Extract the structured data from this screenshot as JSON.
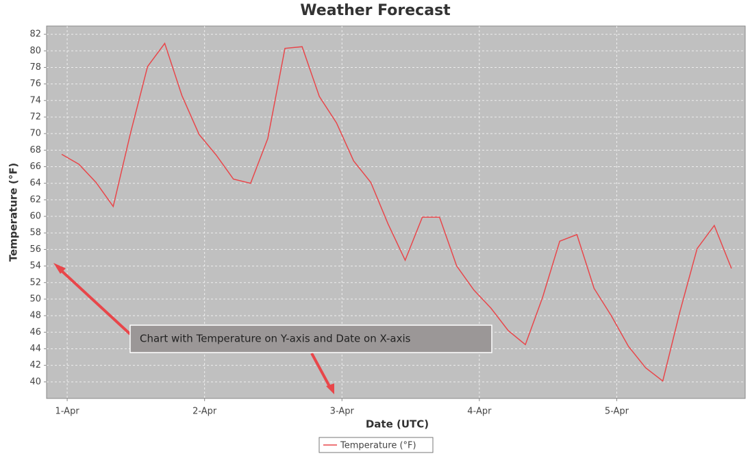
{
  "chart_data": {
    "type": "line",
    "title": "Weather Forecast",
    "x_label": "Date (UTC)",
    "y_label": "Temperature (°F)",
    "annotation": "Chart with Temperature on Y-axis and Date on X-axis",
    "x": [
      0.96,
      1.085,
      1.21,
      1.335,
      1.46,
      1.585,
      1.71,
      1.835,
      1.96,
      2.085,
      2.21,
      2.335,
      2.46,
      2.585,
      2.71,
      2.835,
      2.96,
      3.085,
      3.21,
      3.335,
      3.46,
      3.585,
      3.71,
      3.835,
      3.96,
      4.085,
      4.21,
      4.335,
      4.46,
      4.585,
      4.71,
      4.835,
      4.96,
      5.085,
      5.21,
      5.335,
      5.46,
      5.585,
      5.71,
      5.835
    ],
    "series": [
      {
        "name": "Temperature (°F)",
        "color": "#e8464a",
        "values": [
          67.5,
          66.3,
          64.1,
          61.2,
          70.0,
          78.1,
          80.9,
          74.6,
          69.9,
          67.4,
          64.5,
          64.0,
          69.4,
          80.3,
          80.5,
          74.5,
          71.3,
          66.7,
          64.1,
          59.1,
          54.7,
          59.9,
          59.9,
          54.0,
          51.1,
          48.9,
          46.2,
          44.5,
          50.2,
          57.0,
          57.8,
          51.3,
          48.0,
          44.3,
          41.7,
          40.1,
          48.5,
          56.1,
          58.9,
          53.7
        ]
      }
    ],
    "xlim": [
      0.85,
      5.935
    ],
    "xticks": [
      {
        "value": 1,
        "label": "1-Apr"
      },
      {
        "value": 2,
        "label": "2-Apr"
      },
      {
        "value": 3,
        "label": "3-Apr"
      },
      {
        "value": 4,
        "label": "4-Apr"
      },
      {
        "value": 5,
        "label": "5-Apr"
      }
    ],
    "ylim": [
      38,
      83
    ],
    "yticks": [
      40,
      42,
      44,
      46,
      48,
      50,
      52,
      54,
      56,
      58,
      60,
      62,
      64,
      66,
      68,
      70,
      72,
      74,
      76,
      78,
      80,
      82
    ],
    "grid": true,
    "legend": "bottom"
  }
}
